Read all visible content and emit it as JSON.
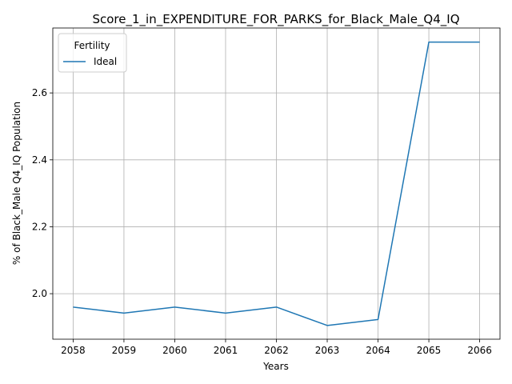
{
  "chart_data": {
    "type": "line",
    "title": "Score_1_in_EXPENDITURE_FOR_PARKS_for_Black_Male_Q4_IQ",
    "xlabel": "Years",
    "ylabel": "% of Black_Male Q4_IQ Population",
    "x": [
      2058,
      2059,
      2060,
      2061,
      2062,
      2063,
      2064,
      2065,
      2066
    ],
    "series": [
      {
        "name": "Ideal",
        "color": "#1f77b4",
        "values": [
          1.96,
          1.942,
          1.96,
          1.942,
          1.96,
          1.905,
          1.923,
          2.752,
          2.752
        ]
      }
    ],
    "xlim": [
      2057.6,
      2066.4
    ],
    "ylim": [
      1.864,
      2.794
    ],
    "yticks": [
      2.0,
      2.2,
      2.4,
      2.6
    ],
    "ytick_labels": [
      "2.0",
      "2.2",
      "2.4",
      "2.6"
    ],
    "xtick_labels": [
      "2058",
      "2059",
      "2060",
      "2061",
      "2062",
      "2063",
      "2064",
      "2065",
      "2066"
    ],
    "grid": true,
    "legend": {
      "title": "Fertility",
      "placement": "top-left"
    }
  }
}
